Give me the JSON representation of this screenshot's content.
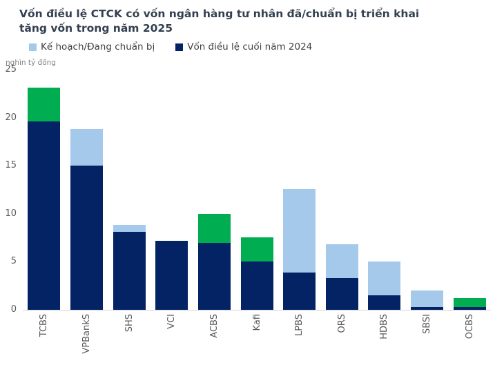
{
  "title_lines": [
    "Vốn điều lệ CTCK có vốn ngân hàng tư nhân đã/chuẩn bị triển khai",
    "tăng vốn trong năm 2025"
  ],
  "unit_label": "nghìn tỷ đồng",
  "legend": {
    "items": [
      {
        "label": "Kế hoạch/Đang chuẩn bị",
        "color": "#A4C9EB"
      },
      {
        "label": "Vốn điều lệ cuối năm 2024",
        "color": "#042365"
      }
    ]
  },
  "colors": {
    "navy": "#042365",
    "light_blue": "#A4C9EB",
    "green": "#00AD50",
    "title_text": "#33404F",
    "axis_text": "#595959",
    "axis_line": "#D4D4D4",
    "unit_text": "#7F7F7F"
  },
  "chart_data": {
    "type": "bar",
    "stacked": true,
    "title": "Vốn điều lệ CTCK có vốn ngân hàng tư nhân đã/chuẩn bị triển khai tăng vốn trong năm 2025",
    "unit": "nghìn tỷ đồng",
    "categories": [
      "TCBS",
      "VPBankS",
      "SHS",
      "VCI",
      "ACBS",
      "Kafi",
      "LPBS",
      "ORS",
      "HDBS",
      "SBSI",
      "OCBS"
    ],
    "series": [
      {
        "key": "base",
        "name": "Vốn điều lệ cuối năm 2024",
        "color": "#042365",
        "in_legend": true,
        "values": [
          19.6,
          15.0,
          8.1,
          7.2,
          7.0,
          5.0,
          3.9,
          3.3,
          1.5,
          0.3,
          0.3
        ]
      },
      {
        "key": "plan",
        "name": "Kế hoạch/Đang chuẩn bị",
        "color": "#A4C9EB",
        "in_legend": true,
        "values": [
          0,
          3.8,
          0.7,
          0,
          0,
          0,
          8.7,
          3.5,
          3.5,
          1.7,
          0
        ]
      },
      {
        "key": "green",
        "name": "",
        "color": "#00AD50",
        "in_legend": false,
        "values": [
          3.5,
          0,
          0,
          0,
          3.0,
          2.5,
          0,
          0,
          0,
          0,
          0.9
        ]
      }
    ],
    "totals": [
      23.1,
      18.8,
      8.8,
      7.2,
      10.0,
      7.5,
      12.6,
      6.8,
      5.0,
      2.0,
      1.2
    ],
    "ylim": [
      0,
      25
    ],
    "yticks": [
      0,
      5,
      10,
      15,
      20,
      25
    ],
    "grid": false,
    "legend_position": "top-left",
    "x_label_rotation": -90
  }
}
